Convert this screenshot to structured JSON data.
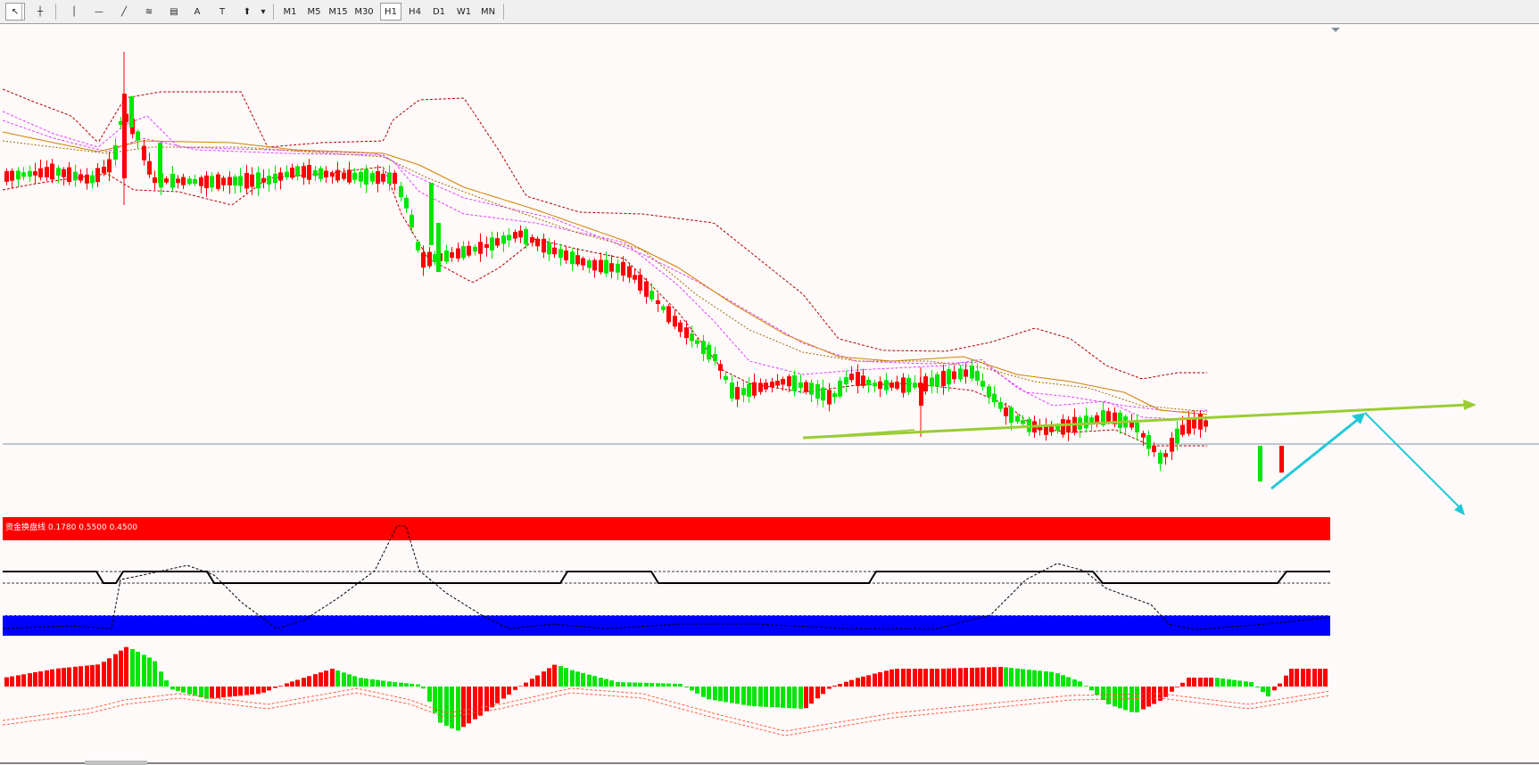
{
  "toolbar": {
    "tools": [
      {
        "name": "cursor-arrow-icon",
        "glyph": "↖"
      },
      {
        "name": "crosshair-icon",
        "glyph": "┼"
      },
      {
        "name": "vertical-line-icon",
        "glyph": "│"
      },
      {
        "name": "horizontal-line-icon",
        "glyph": "—"
      },
      {
        "name": "trendline-icon",
        "glyph": "╱"
      },
      {
        "name": "fibonacci-icon",
        "glyph": "≋"
      },
      {
        "name": "fibonacci-fan-icon",
        "glyph": "▤"
      },
      {
        "name": "text-icon",
        "glyph": "A"
      },
      {
        "name": "text-label-icon",
        "glyph": "T"
      },
      {
        "name": "shapes-icon",
        "glyph": "⬆"
      }
    ],
    "timeframes": [
      "M1",
      "M5",
      "M15",
      "M30",
      "H1",
      "H4",
      "D1",
      "W1",
      "MN"
    ],
    "active_timeframe": "H1"
  },
  "indicator": {
    "label": "资金换盘线 0.1780 0.5500 0.4500"
  },
  "colors": {
    "bull": "#00e600",
    "bear": "#ff0000",
    "ma_orange": "#d08000",
    "band": "#b00000",
    "magenta": "#e040ff",
    "trend_green": "#9acd32",
    "arrow_cyan": "#20c8d8",
    "red_bar": "#ff0000",
    "blue_bar": "#0000ff"
  }
}
